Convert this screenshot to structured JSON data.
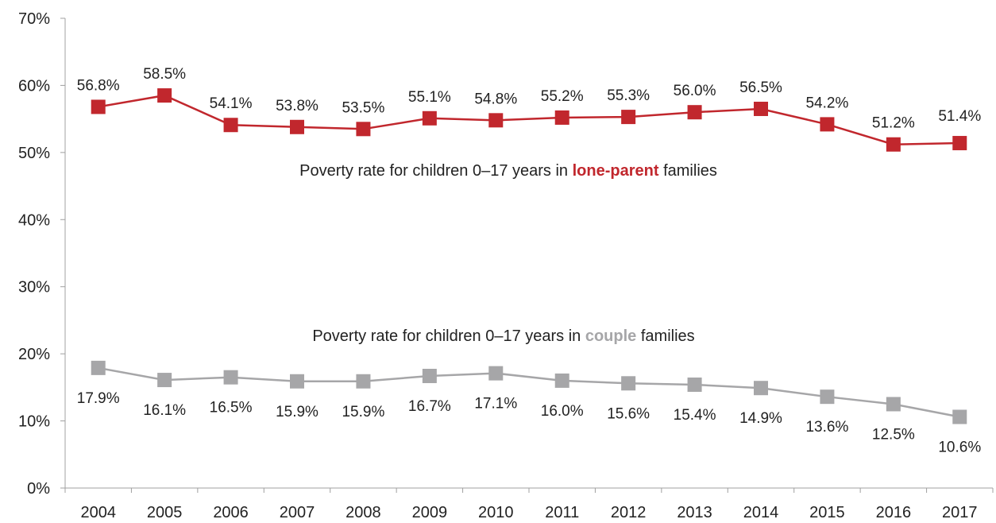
{
  "chart_data": {
    "type": "line",
    "x": [
      "2004",
      "2005",
      "2006",
      "2007",
      "2008",
      "2009",
      "2010",
      "2011",
      "2012",
      "2013",
      "2014",
      "2015",
      "2016",
      "2017"
    ],
    "ylim": [
      0,
      70
    ],
    "yticks": [
      0,
      10,
      20,
      30,
      40,
      50,
      60,
      70
    ],
    "ytick_labels": [
      "0%",
      "10%",
      "20%",
      "30%",
      "40%",
      "50%",
      "60%",
      "70%"
    ],
    "grid": false,
    "legend": "none",
    "series": [
      {
        "key": "lone_parent",
        "color": "#c1272d",
        "values": [
          56.8,
          58.5,
          54.1,
          53.8,
          53.5,
          55.1,
          54.8,
          55.2,
          55.3,
          56.0,
          56.5,
          54.2,
          51.2,
          51.4
        ],
        "labels": [
          "56.8%",
          "58.5%",
          "54.1%",
          "53.8%",
          "53.5%",
          "55.1%",
          "54.8%",
          "55.2%",
          "55.3%",
          "56.0%",
          "56.5%",
          "54.2%",
          "51.2%",
          "51.4%"
        ]
      },
      {
        "key": "couple",
        "color": "#a6a6a8",
        "values": [
          17.9,
          16.1,
          16.5,
          15.9,
          15.9,
          16.7,
          17.1,
          16.0,
          15.6,
          15.4,
          14.9,
          13.6,
          12.5,
          10.6
        ],
        "labels": [
          "17.9%",
          "16.1%",
          "16.5%",
          "15.9%",
          "15.9%",
          "16.7%",
          "17.1%",
          "16.0%",
          "15.6%",
          "15.4%",
          "14.9%",
          "13.6%",
          "12.5%",
          "10.6%"
        ]
      }
    ],
    "annotations": {
      "lone_parent": {
        "prefix": "Poverty rate for children 0–17 years in ",
        "highlight": "lone-parent",
        "suffix": " families",
        "highlight_color": "#c1272d"
      },
      "couple": {
        "prefix": "Poverty rate for children 0–17 years in ",
        "highlight": "couple",
        "suffix": " families",
        "highlight_color": "#a6a6a8"
      }
    }
  }
}
